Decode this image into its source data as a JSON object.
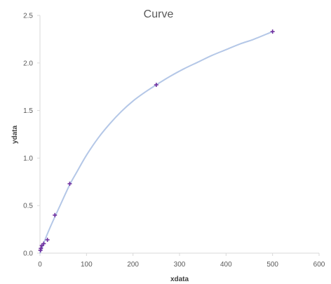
{
  "chart_data": {
    "type": "scatter",
    "title": "Curve",
    "xlabel": "xdata",
    "ylabel": "ydata",
    "xlim": [
      0,
      600
    ],
    "ylim": [
      0,
      2.5
    ],
    "xticks": [
      0,
      100,
      200,
      300,
      400,
      500,
      600
    ],
    "yticks": [
      0,
      0.5,
      1.0,
      1.5,
      2.0,
      2.5
    ],
    "xtick_labels": [
      "0",
      "100",
      "200",
      "300",
      "400",
      "500",
      "600"
    ],
    "ytick_labels": [
      "0.0",
      "0.5",
      "1.0",
      "1.5",
      "2.0",
      "2.5"
    ],
    "grid": false,
    "series": [
      {
        "kind": "markers",
        "marker": "+",
        "x": [
          1,
          2,
          4,
          8,
          16,
          32,
          64,
          250,
          500
        ],
        "y": [
          0.03,
          0.05,
          0.08,
          0.1,
          0.14,
          0.4,
          0.73,
          1.77,
          2.33
        ]
      },
      {
        "kind": "smooth-line",
        "x": [
          0,
          5,
          10,
          20,
          30,
          45,
          64,
          80,
          100,
          125,
          150,
          175,
          200,
          225,
          250,
          280,
          310,
          340,
          370,
          400,
          430,
          460,
          500
        ],
        "y": [
          0,
          0.06,
          0.13,
          0.25,
          0.36,
          0.52,
          0.72,
          0.86,
          1.03,
          1.21,
          1.36,
          1.49,
          1.6,
          1.69,
          1.77,
          1.86,
          1.94,
          2.01,
          2.08,
          2.14,
          2.2,
          2.25,
          2.33
        ]
      }
    ],
    "colors": {
      "line": "#b4c7e7",
      "marker": "#7030a0",
      "axis": "#d9d9d9",
      "text": "#595959",
      "axis_title": "#404040"
    }
  }
}
